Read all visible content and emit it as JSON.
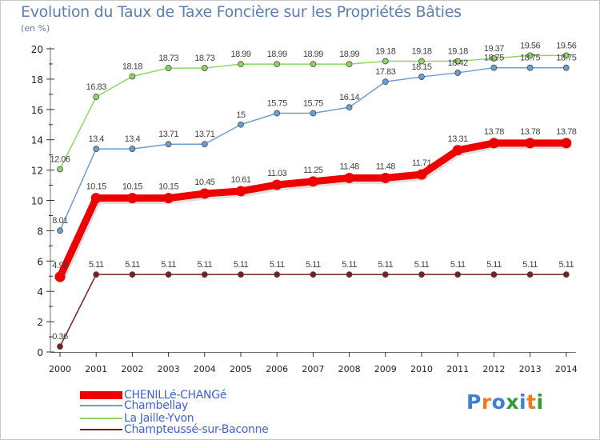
{
  "title": "Evolution du Taux de Taxe Foncière sur les Propriétés Bâties",
  "unit_label": "(en %)",
  "logo": {
    "text": "Proxiti",
    "colors": [
      "#3f7fd8",
      "#f07a1e",
      "#3f7fd8",
      "#2e9b3a",
      "#3f7fd8",
      "#f07a1e",
      "#2e9b3a"
    ]
  },
  "chart_data": {
    "type": "line",
    "title": "Evolution du Taux de Taxe Foncière sur les Propriétés Bâties",
    "ylabel": "(en %)",
    "xlabel": "",
    "ylim": [
      0,
      20
    ],
    "yticks": [
      0,
      2,
      4,
      6,
      8,
      10,
      12,
      14,
      16,
      18,
      20
    ],
    "categories": [
      "2000",
      "2001",
      "2002",
      "2003",
      "2004",
      "2005",
      "2006",
      "2007",
      "2008",
      "2009",
      "2010",
      "2011",
      "2012",
      "2013",
      "2014"
    ],
    "series": [
      {
        "name": "CHENILLé-CHANGé",
        "color": "#ee0000",
        "values": [
          4.96,
          10.15,
          10.15,
          10.15,
          10.45,
          10.61,
          11.03,
          11.25,
          11.48,
          11.48,
          11.71,
          13.31,
          13.78,
          13.78,
          13.78
        ],
        "labels": [
          "4.96",
          "10.15",
          "10.15",
          "10.15",
          "10.45",
          "10.61",
          "11.03",
          "11.25",
          "11.48",
          "11.48",
          "11.71",
          "13.31",
          "13.78",
          "13.78",
          "13.78"
        ]
      },
      {
        "name": "Chambellay",
        "color": "#6b9fd0",
        "values": [
          8.01,
          13.4,
          13.4,
          13.71,
          13.71,
          15,
          15.75,
          15.75,
          16.14,
          17.83,
          18.15,
          18.42,
          18.75,
          18.75,
          18.75
        ],
        "labels": [
          "8.01",
          "13.4",
          "13.4",
          "13.71",
          "13.71",
          "15",
          "15.75",
          "15.75",
          "16.14",
          "17.83",
          "18.15",
          "18.42",
          "18.75",
          "18.75",
          "18.75"
        ]
      },
      {
        "name": "La Jaille-Yvon",
        "color": "#8fd660",
        "values": [
          12.06,
          16.83,
          18.18,
          18.73,
          18.73,
          18.99,
          18.99,
          18.99,
          18.99,
          19.18,
          19.18,
          19.18,
          19.37,
          19.56,
          19.56
        ],
        "labels": [
          "12.06",
          "16.83",
          "18.18",
          "18.73",
          "18.73",
          "18.99",
          "18.99",
          "18.99",
          "18.99",
          "19.18",
          "19.18",
          "19.18",
          "19.37",
          "19.56",
          "19.56"
        ]
      },
      {
        "name": "Champteussé-sur-Baconne",
        "color": "#7a1f1f",
        "values": [
          0.36,
          5.11,
          5.11,
          5.11,
          5.11,
          5.11,
          5.11,
          5.11,
          5.11,
          5.11,
          5.11,
          5.11,
          5.11,
          5.11,
          5.11
        ],
        "labels": [
          "0.36",
          "5.11",
          "5.11",
          "5.11",
          "5.11",
          "5.11",
          "5.11",
          "5.11",
          "5.11",
          "5.11",
          "5.11",
          "5.11",
          "5.11",
          "5.11",
          "5.11"
        ]
      }
    ],
    "legend_position": "bottom-left",
    "grid": false
  }
}
